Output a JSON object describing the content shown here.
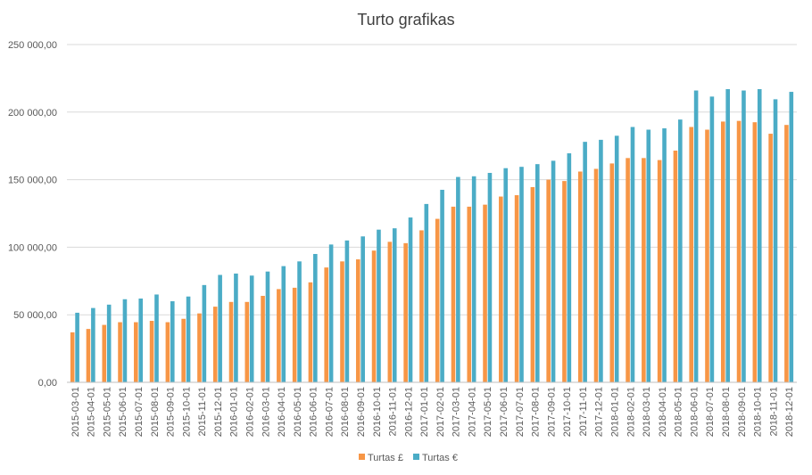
{
  "chart_data": {
    "type": "bar",
    "title": "Turto grafikas",
    "xlabel": "",
    "ylabel": "",
    "ylim": [
      0,
      250000
    ],
    "yticks": [
      "0,00",
      "50 000,00",
      "100 000,00",
      "150 000,00",
      "200 000,00",
      "250 000,00"
    ],
    "ytick_values": [
      0,
      50000,
      100000,
      150000,
      200000,
      250000
    ],
    "grid": true,
    "legend_position": "bottom",
    "categories": [
      "2015-03-01",
      "2015-04-01",
      "2015-05-01",
      "2015-06-01",
      "2015-07-01",
      "2015-08-01",
      "2015-09-01",
      "2015-10-01",
      "2015-11-01",
      "2015-12-01",
      "2016-01-01",
      "2016-02-01",
      "2016-03-01",
      "2016-04-01",
      "2016-05-01",
      "2016-06-01",
      "2016-07-01",
      "2016-08-01",
      "2016-09-01",
      "2016-10-01",
      "2016-11-01",
      "2016-12-01",
      "2017-01-01",
      "2017-02-01",
      "2017-03-01",
      "2017-04-01",
      "2017-05-01",
      "2017-06-01",
      "2017-07-01",
      "2017-08-01",
      "2017-09-01",
      "2017-10-01",
      "2017-11-01",
      "2017-12-01",
      "2018-01-01",
      "2018-02-01",
      "2018-03-01",
      "2018-04-01",
      "2018-05-01",
      "2018-06-01",
      "2018-07-01",
      "2018-08-01",
      "2018-09-01",
      "2018-10-01",
      "2018-11-01",
      "2018-12-01"
    ],
    "series": [
      {
        "name": "Turtas £",
        "color": "#F79646",
        "values": [
          37000,
          39500,
          42500,
          44500,
          44500,
          45500,
          44500,
          47000,
          51000,
          56000,
          59500,
          59500,
          64000,
          69000,
          70000,
          74000,
          85000,
          89500,
          91000,
          97500,
          104000,
          103000,
          112500,
          121000,
          130000,
          130000,
          131500,
          137500,
          138500,
          144500,
          150000,
          149000,
          156000,
          158000,
          162000,
          166000,
          166000,
          164500,
          171500,
          189000,
          187000,
          193000,
          193500,
          192500,
          184000,
          190500
        ]
      },
      {
        "name": "Turtas €",
        "color": "#4BACC6",
        "values": [
          51500,
          55000,
          57500,
          61500,
          62000,
          65000,
          60000,
          63500,
          72000,
          79500,
          80500,
          79000,
          82000,
          86000,
          89500,
          95000,
          102000,
          105000,
          108000,
          113000,
          114000,
          122000,
          132000,
          142500,
          152000,
          152500,
          155000,
          158500,
          159500,
          161500,
          164000,
          169500,
          178000,
          179500,
          182500,
          189000,
          187000,
          188000,
          194500,
          216000,
          211500,
          217000,
          216000,
          217000,
          209500,
          215000
        ]
      }
    ]
  }
}
